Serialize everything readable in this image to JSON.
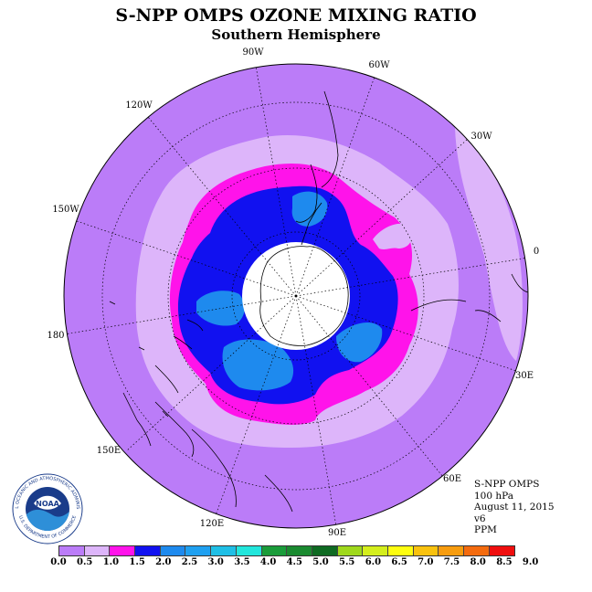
{
  "header": {
    "title": "S-NPP OMPS OZONE MIXING RATIO",
    "subtitle": "Southern Hemisphere"
  },
  "map": {
    "projection": "south polar stereographic",
    "longitude_labels": [
      "90W",
      "60W",
      "30W",
      "0",
      "30E",
      "60E",
      "90E",
      "120E",
      "150E",
      "180",
      "150W",
      "120W"
    ],
    "colors": {
      "background_ring": "#bb7cf8",
      "light_lavender": "#ddb5fa",
      "magenta": "#ff13ea",
      "blue": "#1111f0",
      "light_blue": "#1e8aee",
      "polar_cap": "#ffffff"
    }
  },
  "info": {
    "instrument": "S-NPP OMPS",
    "level": "100 hPa",
    "date": "August 11, 2015",
    "version": "v6",
    "units": "PPM"
  },
  "logo": {
    "text": "NOAA",
    "ring_text": "NATIONAL OCEANIC AND ATMOSPHERIC ADMINISTRATION",
    "lower_text": "U.S. DEPARTMENT OF COMMERCE"
  },
  "colorbar": {
    "ticks": [
      "0.0",
      "0.5",
      "1.0",
      "1.5",
      "2.0",
      "2.5",
      "3.0",
      "3.5",
      "4.0",
      "4.5",
      "5.0",
      "5.5",
      "6.0",
      "6.5",
      "7.0",
      "7.5",
      "8.0",
      "8.5",
      "9.0"
    ],
    "colors": [
      "#bb7cf8",
      "#ddb5fa",
      "#ff13ea",
      "#1111f0",
      "#1e8aee",
      "#1fa0f0",
      "#1fbfe6",
      "#22e6dc",
      "#1a9c3a",
      "#1a8a30",
      "#0e6a22",
      "#9fd81c",
      "#d4ee1c",
      "#fefe10",
      "#f9c20e",
      "#f79c0e",
      "#f46b0e",
      "#ef0e0e",
      "#8a5a3e"
    ]
  }
}
